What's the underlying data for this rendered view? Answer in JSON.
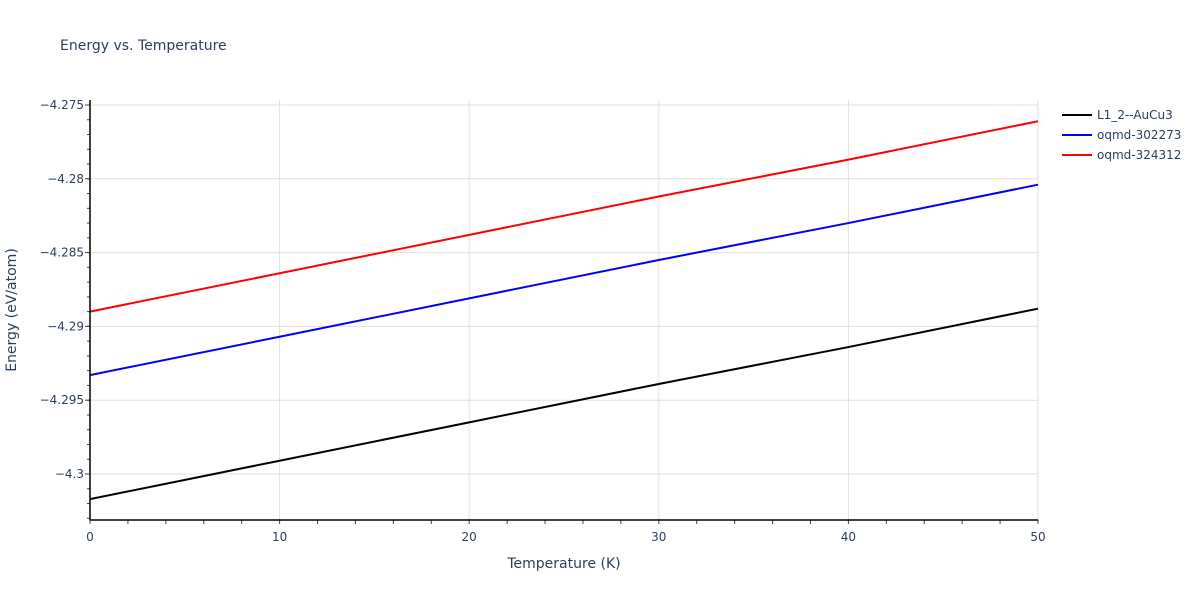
{
  "chart_data": {
    "type": "line",
    "title": "Energy vs. Temperature",
    "xlabel": "Temperature (K)",
    "ylabel": "Energy (eV/atom)",
    "xlim": [
      0,
      50
    ],
    "ylim": [
      -4.3033,
      -4.2752
    ],
    "x_ticks": [
      0,
      10,
      20,
      30,
      40,
      50
    ],
    "x_tick_labels": [
      "0",
      "10",
      "20",
      "30",
      "40",
      "50"
    ],
    "y_ticks": [
      -4.275,
      -4.28,
      -4.285,
      -4.29,
      -4.295,
      -4.3
    ],
    "y_tick_labels": [
      "−4.275",
      "−4.28",
      "−4.285",
      "−4.29",
      "−4.295",
      "−4.3"
    ],
    "grid": true,
    "legend_position": "right-top",
    "x": [
      0,
      10,
      20,
      30,
      40,
      50
    ],
    "series": [
      {
        "name": "L1_2--AuCu3",
        "color": "#000000",
        "values": [
          -4.3017,
          -4.2991,
          -4.2965,
          -4.2939,
          -4.2914,
          -4.2888
        ]
      },
      {
        "name": "oqmd-302273",
        "color": "#0000ff",
        "values": [
          -4.2933,
          -4.2907,
          -4.2881,
          -4.2855,
          -4.283,
          -4.2804
        ]
      },
      {
        "name": "oqmd-324312",
        "color": "#ff0000",
        "values": [
          -4.289,
          -4.2864,
          -4.2838,
          -4.2812,
          -4.2787,
          -4.2761
        ]
      }
    ]
  }
}
